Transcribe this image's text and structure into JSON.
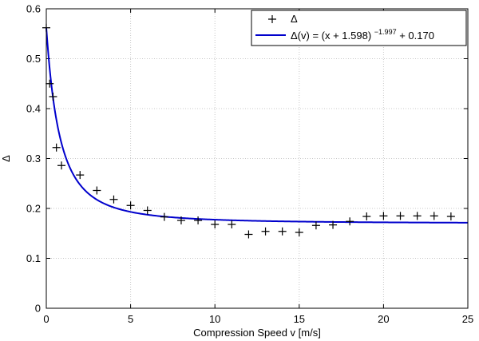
{
  "chart_data": {
    "type": "scatter",
    "title": "",
    "xlabel": "Compression Speed v [m/s]",
    "ylabel": "Δ",
    "xlim": [
      0,
      25
    ],
    "ylim": [
      0,
      0.6
    ],
    "xticks": [
      0,
      5,
      10,
      15,
      20,
      25
    ],
    "yticks": [
      0,
      0.1,
      0.2,
      0.3,
      0.4,
      0.5,
      0.6
    ],
    "xtick_labels": [
      "0",
      "5",
      "10",
      "15",
      "20",
      "25"
    ],
    "ytick_labels": [
      "0",
      "0.1",
      "0.2",
      "0.3",
      "0.4",
      "0.5",
      "0.6"
    ],
    "grid": true,
    "legend_position": "top-right",
    "series": [
      {
        "name": "Δ",
        "kind": "markers",
        "marker": "+",
        "color": "#000000",
        "x": [
          0,
          0.2,
          0.4,
          0.6,
          0.9,
          2,
          3,
          4,
          5,
          6,
          7,
          8,
          9,
          10,
          11,
          12,
          13,
          14,
          15,
          16,
          17,
          18,
          19,
          20,
          21,
          22,
          23,
          24
        ],
        "y": [
          0.562,
          0.45,
          0.424,
          0.322,
          0.286,
          0.267,
          0.236,
          0.218,
          0.206,
          0.196,
          0.183,
          0.176,
          0.176,
          0.168,
          0.168,
          0.148,
          0.154,
          0.154,
          0.152,
          0.166,
          0.167,
          0.174,
          0.184,
          0.185,
          0.185,
          0.185,
          0.185,
          0.184
        ]
      },
      {
        "name": "Δ(v) = (x + 1.598)^−1.997 + 0.170",
        "kind": "line",
        "color": "#0000cc",
        "formula": {
          "shift": 1.598,
          "exponent": -1.997,
          "offset": 0.17
        },
        "x_range": [
          0,
          25
        ]
      }
    ],
    "legend": {
      "marker_label": "Δ",
      "fit_prefix": "Δ(v) = (x + 1.598)",
      "fit_exponent": "−1.997",
      "fit_suffix": " + 0.170"
    }
  }
}
